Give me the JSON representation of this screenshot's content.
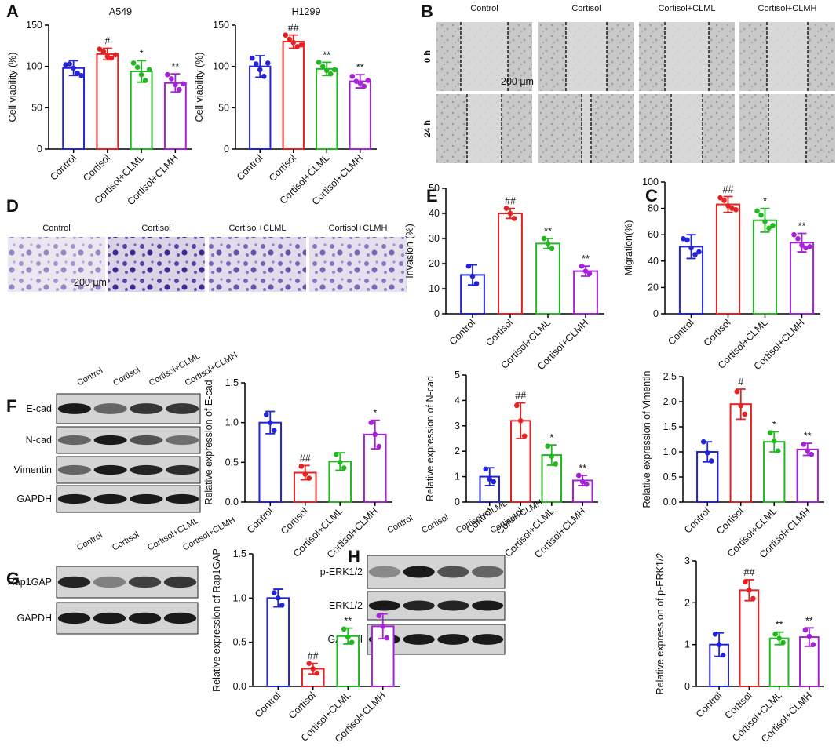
{
  "panels": {
    "letters": [
      "A",
      "B",
      "D",
      "E",
      "C",
      "F",
      "G",
      "H"
    ]
  },
  "wound": {
    "columns": [
      "Control",
      "Cortisol",
      "Cortisol+CLML",
      "Cortisol+CLMH"
    ],
    "rows": [
      "0 h",
      "24 h"
    ],
    "scale": "200 μm"
  },
  "transwell": {
    "columns": [
      "Control",
      "Cortisol",
      "Cortisol+CLML",
      "Cortisol+CLMH"
    ],
    "scale": "200 μm"
  },
  "blots": [
    {
      "lanes": [
        "Control",
        "Cortisol",
        "Cortisol+CLML",
        "Cortisol+CLMH"
      ],
      "rows": [
        "E-cad",
        "N-cad",
        "Vimentin",
        "GAPDH"
      ]
    },
    {
      "lanes": [
        "Control",
        "Cortisol",
        "Cortisol+CLML",
        "Cortisol+CLMH"
      ],
      "rows": [
        "Rap1GAP",
        "GAPDH"
      ]
    },
    {
      "lanes": [
        "Control",
        "Cortisol",
        "Cortisol+CLML",
        "Cortisol+CLMH"
      ],
      "rows": [
        "p-ERK1/2",
        "ERK1/2",
        "GAPDH"
      ]
    }
  ],
  "chart_data": [
    {
      "type": "bar",
      "title": "A549",
      "y_label": "Cell viability (%)",
      "categories": [
        "Control",
        "Cortisol",
        "Cortisol+CLML",
        "Cortisol+CLMH"
      ],
      "colors": [
        "#2323d8",
        "#e52222",
        "#22b822",
        "#a622d8"
      ],
      "values": [
        98,
        115,
        94,
        80
      ],
      "errors": [
        9,
        7,
        13,
        11
      ],
      "points": [
        [
          102,
          103,
          98,
          92,
          89
        ],
        [
          121,
          118,
          112,
          110,
          114
        ],
        [
          104,
          99,
          90,
          83,
          96
        ],
        [
          90,
          85,
          78,
          72,
          79
        ]
      ],
      "annotations": [
        null,
        "#",
        "*",
        "**"
      ],
      "ylim": [
        0,
        150
      ],
      "yticks": [
        0,
        50,
        100,
        150
      ]
    },
    {
      "type": "bar",
      "title": "H1299",
      "y_label": "Cell viability (%)",
      "categories": [
        "Control",
        "Cortisol",
        "Cortisol+CLML",
        "Cortisol+CLMH"
      ],
      "colors": [
        "#2323d8",
        "#e52222",
        "#22b822",
        "#a622d8"
      ],
      "values": [
        100,
        130,
        97,
        82
      ],
      "errors": [
        13,
        8,
        8,
        8
      ],
      "points": [
        [
          110,
          103,
          96,
          88,
          104
        ],
        [
          138,
          133,
          129,
          124,
          126
        ],
        [
          105,
          100,
          95,
          91,
          96
        ],
        [
          88,
          82,
          80,
          76,
          83
        ]
      ],
      "annotations": [
        null,
        "##",
        "**",
        "**"
      ],
      "ylim": [
        0,
        150
      ],
      "yticks": [
        0,
        50,
        100,
        150
      ]
    },
    {
      "type": "bar",
      "y_label": "Invasion (%)",
      "categories": [
        "Control",
        "Cortisol",
        "Cortisol+CLML",
        "Cortisol+CLMH"
      ],
      "colors": [
        "#2323d8",
        "#e52222",
        "#22b822",
        "#a622d8"
      ],
      "values": [
        15.5,
        40,
        28,
        17
      ],
      "errors": [
        4,
        2,
        2,
        2
      ],
      "points": [
        [
          19,
          15,
          12
        ],
        [
          42,
          40,
          38
        ],
        [
          30,
          28,
          26
        ],
        [
          19,
          17,
          16
        ]
      ],
      "annotations": [
        null,
        "##",
        "**",
        "**"
      ],
      "ylim": [
        0,
        50
      ],
      "yticks": [
        0,
        10,
        20,
        30,
        40,
        50
      ]
    },
    {
      "type": "bar",
      "y_label": "Migration(%)",
      "categories": [
        "Control",
        "Cortisol",
        "Cortisol+CLML",
        "Cortisol+CLMH"
      ],
      "colors": [
        "#2323d8",
        "#e52222",
        "#22b822",
        "#a622d8"
      ],
      "values": [
        51,
        83,
        71,
        54
      ],
      "errors": [
        9,
        6,
        9,
        7
      ],
      "points": [
        [
          57,
          56,
          50,
          45,
          47
        ],
        [
          88,
          86,
          82,
          80,
          79
        ],
        [
          78,
          75,
          70,
          65,
          67
        ],
        [
          60,
          57,
          52,
          50,
          51
        ]
      ],
      "annotations": [
        null,
        "##",
        "*",
        "**"
      ],
      "ylim": [
        0,
        100
      ],
      "yticks": [
        0,
        20,
        40,
        60,
        80,
        100
      ]
    },
    {
      "type": "bar",
      "y_label": "Relative expression of E-cad",
      "categories": [
        "Control",
        "Cortisol",
        "Cortisol+CLML",
        "Cortisol+CLMH"
      ],
      "colors": [
        "#2323d8",
        "#e52222",
        "#22b822",
        "#a622d8"
      ],
      "values": [
        1.0,
        0.37,
        0.51,
        0.85
      ],
      "errors": [
        0.14,
        0.09,
        0.11,
        0.18
      ],
      "points": [
        [
          1.1,
          1.0,
          0.9
        ],
        [
          0.45,
          0.35,
          0.3
        ],
        [
          0.6,
          0.5,
          0.43
        ],
        [
          1.0,
          0.85,
          0.7
        ]
      ],
      "annotations": [
        null,
        "##",
        null,
        "*"
      ],
      "ylim": [
        0,
        1.5
      ],
      "yticks": [
        {
          "value": 0,
          "label": "0.0"
        },
        0.5,
        {
          "value": 1,
          "label": "1.0"
        },
        1.5
      ]
    },
    {
      "type": "bar",
      "y_label": "Relative expression of N-cad",
      "categories": [
        "Control",
        "Cortisol",
        "Cortisol+CLML",
        "Cortisol+CLMH"
      ],
      "colors": [
        "#2323d8",
        "#e52222",
        "#22b822",
        "#a622d8"
      ],
      "values": [
        1.0,
        3.2,
        1.85,
        0.85
      ],
      "errors": [
        0.35,
        0.7,
        0.4,
        0.2
      ],
      "points": [
        [
          1.3,
          0.9,
          0.8
        ],
        [
          3.8,
          3.2,
          2.6
        ],
        [
          2.2,
          1.8,
          1.5
        ],
        [
          1.05,
          0.8,
          0.7
        ]
      ],
      "annotations": [
        null,
        "##",
        "*",
        "**"
      ],
      "ylim": [
        0,
        5
      ],
      "yticks": [
        0,
        1,
        2,
        3,
        4,
        5
      ]
    },
    {
      "type": "bar",
      "y_label": "Relative expression of Vimentin",
      "categories": [
        "Control",
        "Cortisol",
        "Cortisol+CLML",
        "Cortisol+CLMH"
      ],
      "colors": [
        "#2323d8",
        "#e52222",
        "#22b822",
        "#a622d8"
      ],
      "values": [
        1.0,
        1.95,
        1.2,
        1.05
      ],
      "errors": [
        0.2,
        0.3,
        0.2,
        0.12
      ],
      "points": [
        [
          1.2,
          0.98,
          0.82
        ],
        [
          2.2,
          1.92,
          1.75
        ],
        [
          1.38,
          1.22,
          1.02
        ],
        [
          1.15,
          1.02,
          0.95
        ]
      ],
      "annotations": [
        null,
        "#",
        "*",
        "**"
      ],
      "ylim": [
        0,
        2.5
      ],
      "yticks": [
        {
          "value": 0,
          "label": "0.0"
        },
        0.5,
        {
          "value": 1,
          "label": "1.0"
        },
        1.5,
        {
          "value": 2,
          "label": "2.0"
        },
        2.5
      ]
    },
    {
      "type": "bar",
      "y_label": "Relative expression of Rap1GAP",
      "categories": [
        "Control",
        "Cortisol",
        "Cortisol+CLML",
        "Cortisol+CLMH"
      ],
      "colors": [
        "#2323d8",
        "#e52222",
        "#22b822",
        "#a622d8"
      ],
      "values": [
        1.0,
        0.2,
        0.57,
        0.68
      ],
      "errors": [
        0.1,
        0.06,
        0.09,
        0.14
      ],
      "points": [
        [
          1.06,
          1.0,
          0.92
        ],
        [
          0.26,
          0.2,
          0.15
        ],
        [
          0.65,
          0.56,
          0.5
        ],
        [
          0.8,
          0.68,
          0.55
        ]
      ],
      "annotations": [
        null,
        "##",
        "**",
        "**"
      ],
      "ylim": [
        0,
        1.5
      ],
      "yticks": [
        {
          "value": 0,
          "label": "0.0"
        },
        0.5,
        {
          "value": 1,
          "label": "1.0"
        },
        1.5
      ]
    },
    {
      "type": "bar",
      "y_label": "Relative expression of p-ERK1/2",
      "categories": [
        "Control",
        "Cortisol",
        "Cortisol+CLML",
        "Cortisol+CLMH"
      ],
      "colors": [
        "#2323d8",
        "#e52222",
        "#22b822",
        "#a622d8"
      ],
      "values": [
        1.0,
        2.3,
        1.15,
        1.18
      ],
      "errors": [
        0.28,
        0.25,
        0.15,
        0.22
      ],
      "points": [
        [
          1.25,
          1.0,
          0.75
        ],
        [
          2.5,
          2.3,
          2.1
        ],
        [
          1.25,
          1.15,
          1.05
        ],
        [
          1.35,
          1.2,
          1.0
        ]
      ],
      "annotations": [
        null,
        "##",
        "**",
        "**"
      ],
      "ylim": [
        0,
        3
      ],
      "yticks": [
        0,
        1,
        2,
        3
      ]
    }
  ]
}
